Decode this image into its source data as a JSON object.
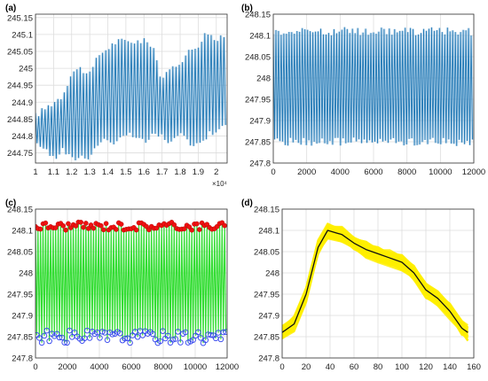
{
  "colors": {
    "signal": "#1f77b4",
    "signal_light": "#9cc6e6",
    "green": "#33dd33",
    "peak_marker": "#ee1111",
    "valley_marker": "#3344ee",
    "yellow": "#ffee00",
    "mean_line": "#111111",
    "grid": "#dddddd"
  },
  "chart_data": [
    {
      "panel_label": "(a)",
      "type": "line",
      "x_range": [
        10000,
        20600
      ],
      "ylim": [
        244.72,
        245.16
      ],
      "x_ticks": [
        "1",
        "1.1",
        "1.2",
        "1.3",
        "1.4",
        "1.5",
        "1.6",
        "1.7",
        "1.8",
        "1.9",
        "2"
      ],
      "x_multiplier": "×10⁴",
      "y_ticks": [
        "244.75",
        "244.8",
        "244.85",
        "244.9",
        "244.95",
        "245",
        "245.05",
        "245.1",
        "245.15"
      ],
      "grid": true,
      "series": [
        {
          "oscillation": "periodic",
          "approx_cycles": 60,
          "upper_envelope": {
            "x": [
              10000,
              10500,
              11000,
              11500,
              12000,
              12500,
              13000,
              13500,
              14000,
              14500,
              15000,
              15500,
              16000,
              16500,
              17000,
              17500,
              18000,
              18500,
              19000,
              19500,
              20000,
              20600
            ],
            "y": [
              244.86,
              244.88,
              244.9,
              244.92,
              244.99,
              245.0,
              244.98,
              245.04,
              245.06,
              245.08,
              245.08,
              245.08,
              245.08,
              245.07,
              244.96,
              245.0,
              245.02,
              245.05,
              245.07,
              245.11,
              245.08,
              245.1
            ]
          },
          "lower_envelope": {
            "x": [
              10000,
              10500,
              11000,
              11500,
              12000,
              12500,
              13000,
              13500,
              14000,
              14500,
              15000,
              15500,
              16000,
              16500,
              17000,
              17500,
              18000,
              18500,
              19000,
              19500,
              20000,
              20600
            ],
            "y": [
              244.77,
              244.77,
              244.73,
              244.76,
              244.73,
              244.74,
              244.74,
              244.78,
              244.79,
              244.78,
              244.8,
              244.8,
              244.78,
              244.8,
              244.8,
              244.78,
              244.8,
              244.78,
              244.78,
              244.8,
              244.82,
              244.83
            ]
          }
        }
      ]
    },
    {
      "panel_label": "(b)",
      "type": "line",
      "x_range": [
        0,
        12000
      ],
      "ylim": [
        247.8,
        248.15
      ],
      "x_ticks": [
        "0",
        "2000",
        "4000",
        "6000",
        "8000",
        "10000",
        "12000"
      ],
      "y_ticks": [
        "247.8",
        "247.85",
        "247.9",
        "247.95",
        "248",
        "248.05",
        "248.1",
        "248.15"
      ],
      "grid": true,
      "series": [
        {
          "oscillation": "periodic",
          "approx_cycles": 76,
          "upper_envelope": {
            "x": [
              0,
              12000
            ],
            "y": [
              248.11,
              248.11
            ]
          },
          "lower_envelope": {
            "x": [
              0,
              12000
            ],
            "y": [
              247.85,
              247.85
            ]
          }
        }
      ]
    },
    {
      "panel_label": "(c)",
      "type": "line",
      "x_range": [
        0,
        12000
      ],
      "ylim": [
        247.8,
        248.15
      ],
      "x_ticks": [
        "0",
        "2000",
        "4000",
        "6000",
        "8000",
        "10000",
        "12000"
      ],
      "y_ticks": [
        "247.8",
        "247.85",
        "247.9",
        "247.95",
        "248",
        "248.05",
        "248.1",
        "248.15"
      ],
      "grid": true,
      "series": [
        {
          "oscillation": "periodic",
          "approx_cycles": 76,
          "peak_level": 248.11,
          "valley_level": 247.85
        }
      ],
      "markers": {
        "peaks": "filled red circles at each maximum",
        "valleys": "open blue circles at each minimum"
      }
    },
    {
      "panel_label": "(d)",
      "type": "line",
      "x_range": [
        0,
        160
      ],
      "ylim": [
        247.8,
        248.15
      ],
      "x_ticks": [
        "0",
        "20",
        "40",
        "60",
        "80",
        "100",
        "120",
        "140",
        "160"
      ],
      "y_ticks": [
        "247.8",
        "247.85",
        "247.9",
        "247.95",
        "248",
        "248.05",
        "248.1",
        "248.15"
      ],
      "grid": true,
      "series": [
        {
          "style": "mean cycle (black) over overlaid individual cycles (yellow band)",
          "x": [
            0,
            10,
            20,
            30,
            38,
            50,
            60,
            70,
            80,
            90,
            100,
            110,
            120,
            130,
            140,
            150,
            155
          ],
          "y": [
            247.86,
            247.88,
            247.95,
            248.06,
            248.1,
            248.09,
            248.07,
            248.055,
            248.045,
            248.035,
            248.025,
            248.0,
            247.96,
            247.94,
            247.91,
            247.87,
            247.86
          ]
        }
      ]
    }
  ]
}
